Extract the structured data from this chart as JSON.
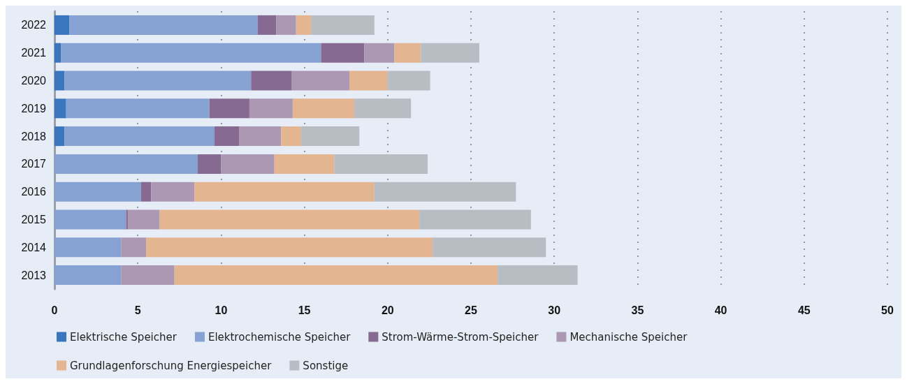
{
  "chart_data": {
    "type": "bar",
    "orientation": "horizontal",
    "stacked": true,
    "categories": [
      "2022",
      "2021",
      "2020",
      "2019",
      "2018",
      "2017",
      "2016",
      "2015",
      "2014",
      "2013"
    ],
    "series": [
      {
        "name": "Elektrische Speicher",
        "color": "#3a76be",
        "values": [
          0.9,
          0.4,
          0.6,
          0.7,
          0.6,
          0,
          0,
          0,
          0,
          0
        ]
      },
      {
        "name": "Elektrochemische Speicher",
        "color": "#86a2d2",
        "values": [
          11.3,
          15.6,
          11.2,
          8.6,
          9.0,
          8.6,
          5.2,
          4.3,
          4.0,
          4.0
        ]
      },
      {
        "name": "Strom-Wärme-Strom-Speicher",
        "color": "#866a91",
        "values": [
          1.1,
          2.6,
          2.45,
          2.4,
          1.5,
          1.4,
          0.6,
          0.1,
          0,
          0
        ]
      },
      {
        "name": "Mechanische Speicher",
        "color": "#ac98b2",
        "values": [
          1.2,
          1.8,
          3.45,
          2.6,
          2.5,
          3.2,
          2.6,
          1.9,
          1.5,
          3.2
        ]
      },
      {
        "name": "Grundlagenforschung Energiespeicher",
        "color": "#e3b591",
        "values": [
          0.9,
          1.6,
          2.3,
          3.7,
          1.2,
          3.6,
          10.8,
          15.6,
          17.2,
          19.4
        ]
      },
      {
        "name": "Sonstige",
        "color": "#b8bcc3",
        "values": [
          3.8,
          3.5,
          2.55,
          3.4,
          3.5,
          5.6,
          8.5,
          6.7,
          6.8,
          4.8
        ]
      }
    ],
    "xlim": [
      0,
      50
    ],
    "xticks": [
      0,
      5,
      10,
      15,
      20,
      25,
      30,
      35,
      40,
      45,
      50
    ],
    "grid": "x",
    "legend": "bottom left"
  }
}
